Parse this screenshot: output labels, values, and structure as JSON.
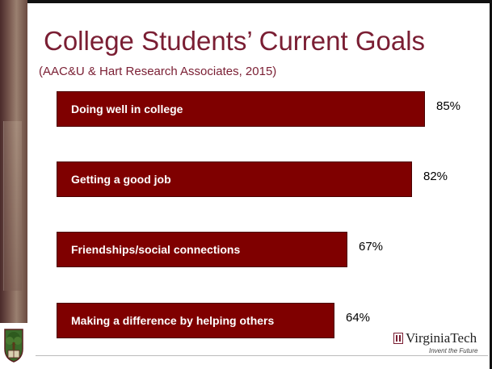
{
  "slide": {
    "title": "College Students’ Current Goals",
    "subtitle": "(AAC&U & Hart Research Associates, 2015)"
  },
  "branding": {
    "name": "VirginiaTech",
    "tagline": "Invent the Future",
    "accent_color": "#7f0000",
    "title_color": "#7a1e33"
  },
  "chart_data": {
    "type": "bar",
    "orientation": "horizontal",
    "title": "",
    "xlabel": "",
    "ylabel": "",
    "xlim": [
      0,
      100
    ],
    "grid": false,
    "legend": "none",
    "categories": [
      "Doing well in college",
      "Getting a good job",
      "Friendships/social connections",
      "Making a difference by helping others"
    ],
    "values": [
      85,
      82,
      67,
      64
    ],
    "value_labels": [
      "85%",
      "82%",
      "67%",
      "64%"
    ]
  }
}
